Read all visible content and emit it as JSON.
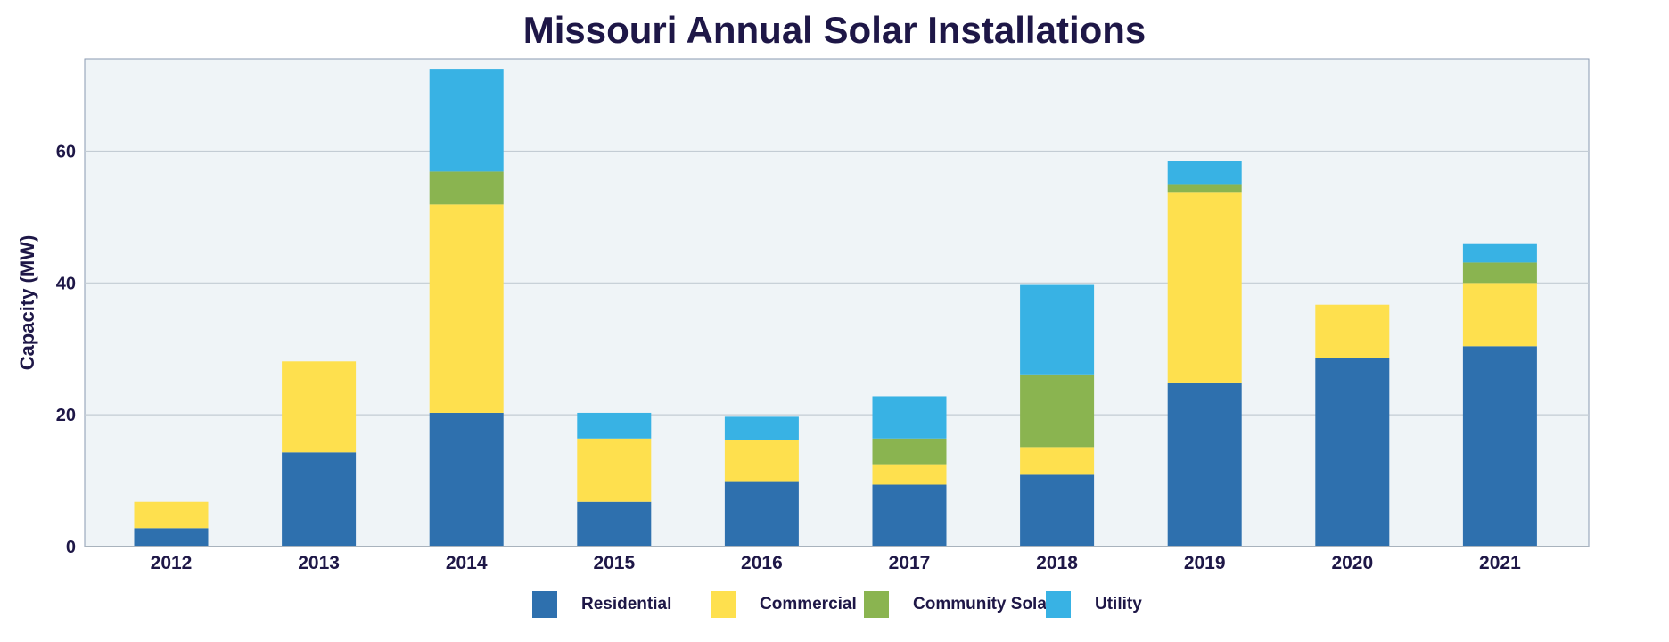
{
  "chart_data": {
    "type": "bar",
    "stacked": true,
    "title": "Missouri Annual Solar Installations",
    "xlabel": "",
    "ylabel": "Capacity (MW)",
    "ylim": [
      0,
      74
    ],
    "yticks": [
      0,
      20,
      40,
      60
    ],
    "grid": true,
    "legend_position": "bottom",
    "categories": [
      "2012",
      "2013",
      "2014",
      "2015",
      "2016",
      "2017",
      "2018",
      "2019",
      "2020",
      "2021"
    ],
    "series": [
      {
        "name": "Residential",
        "color": "#2e70ae",
        "values": [
          2.8,
          14.3,
          20.3,
          6.8,
          9.8,
          9.4,
          10.9,
          24.9,
          28.6,
          30.4
        ]
      },
      {
        "name": "Commercial",
        "color": "#fee04e",
        "values": [
          4.0,
          13.8,
          31.6,
          9.6,
          6.3,
          3.1,
          4.2,
          28.9,
          8.1,
          9.6
        ]
      },
      {
        "name": "Community Solar",
        "color": "#8ab450",
        "values": [
          0,
          0,
          5.0,
          0,
          0,
          3.9,
          10.9,
          1.2,
          0,
          3.1
        ]
      },
      {
        "name": "Utility",
        "color": "#38b2e4",
        "values": [
          0,
          0,
          15.6,
          3.9,
          3.6,
          6.4,
          13.7,
          3.5,
          0,
          2.8
        ]
      }
    ],
    "plot_background": "#eff4f7",
    "text_color": "#1e1747"
  }
}
